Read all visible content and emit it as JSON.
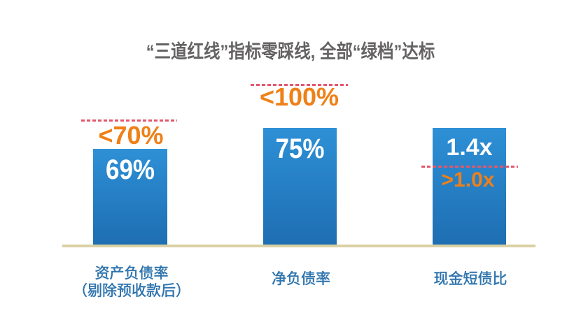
{
  "title": "“三道红线”指标零踩线, 全部“绿档”达标",
  "colors": {
    "title_text": "#646262",
    "bar_top": "#2e90d6",
    "bar_bottom": "#1e6eb2",
    "threshold_text": "#ef8018",
    "dashed_line": "#e4566b",
    "label_text": "#2e74ad",
    "baseline": "#dbd0a4",
    "value_text": "#ffffff"
  },
  "chart_data": {
    "type": "bar",
    "title": "“三道红线”指标零踩线, 全部“绿档”达标",
    "categories": [
      "资产负债率（剔除预收款后）",
      "净负债率",
      "现金短债比"
    ],
    "values": [
      69,
      75,
      1.4
    ],
    "bars": [
      {
        "category_line1": "资产负债率",
        "category_line2": "（剔除预收款后）",
        "value": 69,
        "value_label": "69%",
        "threshold": 70,
        "threshold_label": "<70%",
        "threshold_position": "above-bar"
      },
      {
        "category_line1": "净负债率",
        "category_line2": "",
        "value": 75,
        "value_label": "75%",
        "threshold": 100,
        "threshold_label": "<100%",
        "threshold_position": "above-bar"
      },
      {
        "category_line1": "现金短债比",
        "category_line2": "",
        "value": 1.4,
        "value_label": "1.4x",
        "threshold": 1.0,
        "threshold_label": ">1.0x",
        "threshold_position": "inside-bar"
      }
    ],
    "ylabel": "",
    "xlabel": "",
    "legend": false,
    "grid": false
  }
}
